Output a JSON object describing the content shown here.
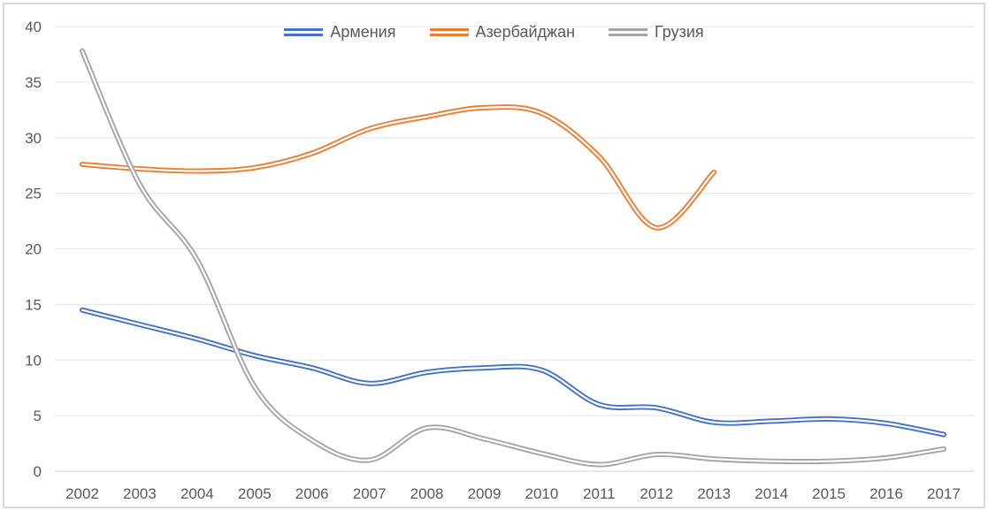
{
  "chart_data": {
    "type": "line",
    "smoothed": true,
    "line_style": "double-stroke",
    "legend_position": "top-center",
    "grid": "horizontal",
    "categories": [
      2002,
      2003,
      2004,
      2005,
      2006,
      2007,
      2008,
      2009,
      2010,
      2011,
      2012,
      2013,
      2014,
      2015,
      2016,
      2017
    ],
    "yticks": [
      0,
      5,
      10,
      15,
      20,
      25,
      30,
      35,
      40
    ],
    "ylim": [
      0,
      40
    ],
    "xlabel": "",
    "ylabel": "",
    "title": "",
    "series": [
      {
        "name": "Армения",
        "color": "#4472C4",
        "values": [
          14.5,
          13.2,
          11.9,
          10.4,
          9.3,
          7.9,
          8.9,
          9.3,
          9.1,
          6.0,
          5.7,
          4.4,
          4.5,
          4.7,
          4.3,
          3.3
        ]
      },
      {
        "name": "Азербайджан",
        "color": "#ED7D31",
        "values": [
          27.6,
          27.2,
          27.0,
          27.3,
          28.6,
          30.8,
          31.9,
          32.7,
          32.2,
          28.3,
          21.9,
          26.9,
          null,
          null,
          null,
          null
        ]
      },
      {
        "name": "Грузия",
        "color": "#A5A5A5",
        "values": [
          37.8,
          25.8,
          19.0,
          7.6,
          2.8,
          1.0,
          3.9,
          2.9,
          1.6,
          0.6,
          1.5,
          1.1,
          0.9,
          0.9,
          1.2,
          2.0
        ]
      }
    ],
    "colors": {
      "background": "#FFFFFF",
      "frame_border": "#D9D9D9",
      "gridline": "#E8E8E8",
      "baseline": "#D9D9D9",
      "axis_text": "#595959",
      "line_inner": "#FFFFFF"
    }
  }
}
